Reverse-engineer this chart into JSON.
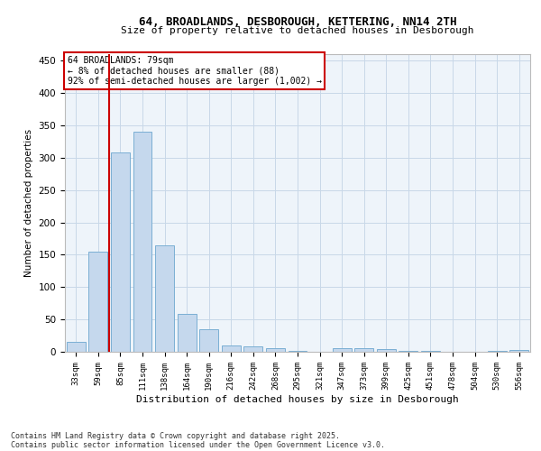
{
  "title_line1": "64, BROADLANDS, DESBOROUGH, KETTERING, NN14 2TH",
  "title_line2": "Size of property relative to detached houses in Desborough",
  "xlabel": "Distribution of detached houses by size in Desborough",
  "ylabel": "Number of detached properties",
  "categories": [
    "33sqm",
    "59sqm",
    "85sqm",
    "111sqm",
    "138sqm",
    "164sqm",
    "190sqm",
    "216sqm",
    "242sqm",
    "268sqm",
    "295sqm",
    "321sqm",
    "347sqm",
    "373sqm",
    "399sqm",
    "425sqm",
    "451sqm",
    "478sqm",
    "504sqm",
    "530sqm",
    "556sqm"
  ],
  "values": [
    15,
    155,
    308,
    340,
    165,
    58,
    35,
    10,
    8,
    6,
    2,
    0,
    5,
    5,
    4,
    2,
    1,
    0,
    0,
    1,
    3
  ],
  "bar_color": "#c5d8ed",
  "bar_edge_color": "#7bafd4",
  "vline_color": "#cc0000",
  "annotation_text_line1": "64 BROADLANDS: 79sqm",
  "annotation_text_line2": "← 8% of detached houses are smaller (88)",
  "annotation_text_line3": "92% of semi-detached houses are larger (1,002) →",
  "annotation_box_color": "#cc0000",
  "ylim": [
    0,
    460
  ],
  "yticks": [
    0,
    50,
    100,
    150,
    200,
    250,
    300,
    350,
    400,
    450
  ],
  "grid_color": "#c8d8e8",
  "background_color": "#eef4fa",
  "footer_line1": "Contains HM Land Registry data © Crown copyright and database right 2025.",
  "footer_line2": "Contains public sector information licensed under the Open Government Licence v3.0."
}
